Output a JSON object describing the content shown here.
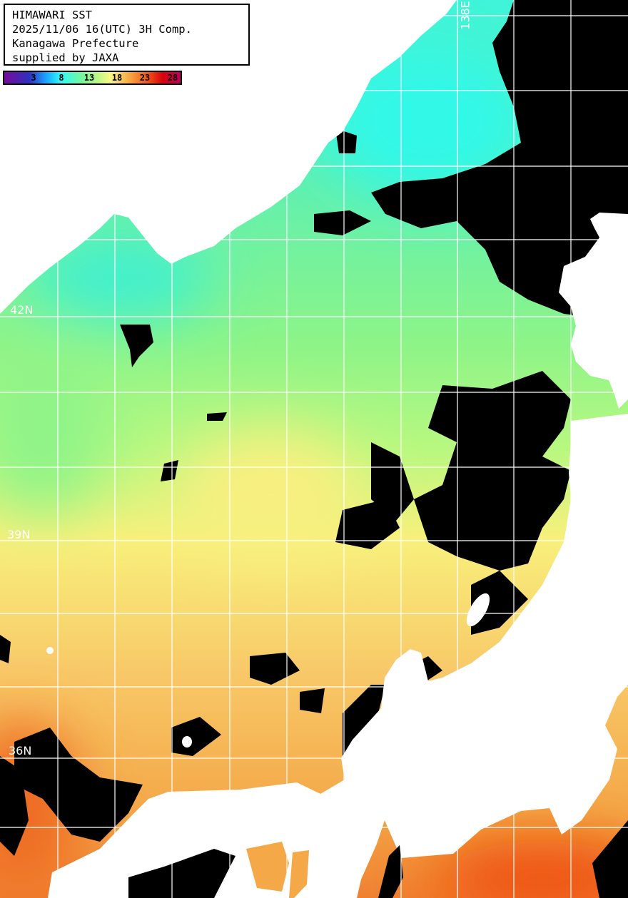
{
  "header": {
    "lines": [
      "HIMAWARI SST",
      "2025/11/06 16(UTC) 3H Comp.",
      "Kanagawa Prefecture",
      "supplied by JAXA"
    ]
  },
  "colorbar": {
    "unit_values": [
      "3",
      "8",
      "13",
      "18",
      "23",
      "28"
    ],
    "colors": [
      "#7a0a9a",
      "#3030c0",
      "#1aa8ff",
      "#30f8f8",
      "#80f890",
      "#f8f880",
      "#f8a040",
      "#f05010",
      "#d80010",
      "#c00060"
    ]
  },
  "map": {
    "lat_labels": [
      "42N",
      "39N",
      "36N"
    ],
    "lon_labels": [
      "138E"
    ],
    "land_color": "#ffffff",
    "cloud_color": "#000000",
    "grid_color": "#ffffff"
  }
}
